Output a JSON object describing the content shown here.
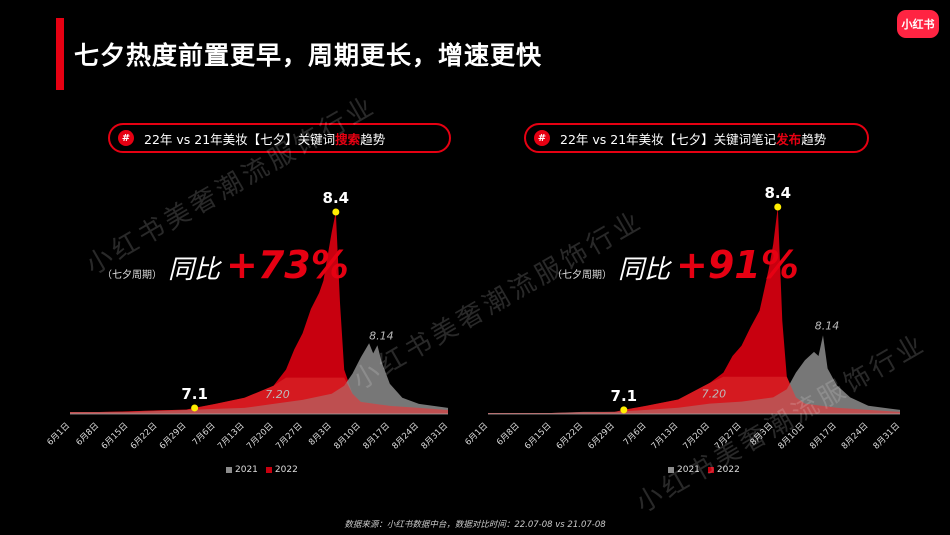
{
  "title": "七夕热度前置更早，周期更长，增速更快",
  "logo_text": "小红书",
  "source": "数据来源：小红书数据中台，数据对比时间：22.07-08 vs 21.07-08",
  "watermark": "小红书美奢潮流服饰行业",
  "colors": {
    "series_2021": "#8c8c8c",
    "series_2022": "#c8000f",
    "accent": "#e60012",
    "highlight_dot": "#ffee00"
  },
  "panels": [
    {
      "pill": {
        "prefix": "22年 vs 21年美妆【七夕】关键词",
        "highlight": "搜索",
        "suffix": "趋势"
      },
      "yoy": {
        "paren": "（七夕周期）",
        "label": "同比",
        "value": "+73%"
      }
    },
    {
      "pill": {
        "prefix": "22年 vs 21年美妆【七夕】关键词笔记",
        "highlight": "发布",
        "suffix": "趋势"
      },
      "yoy": {
        "paren": "（七夕周期）",
        "label": "同比",
        "value": "+91%"
      }
    }
  ],
  "chart_data": [
    {
      "type": "area",
      "title": "22年 vs 21年美妆【七夕】关键词搜索趋势",
      "x_ticks": [
        "6月1日",
        "6月8日",
        "6月15日",
        "6月22日",
        "6月29日",
        "7月6日",
        "7月13日",
        "7月20日",
        "7月27日",
        "8月3日",
        "8月10日",
        "8月17日",
        "8月24日",
        "8月31日"
      ],
      "legend": [
        "2021",
        "2022"
      ],
      "legend_placement": "bottom",
      "grid": false,
      "annotations": [
        {
          "text": "7.1",
          "series": "2022",
          "x": "7月1日",
          "marker": true,
          "bold": true
        },
        {
          "text": "8.4",
          "series": "2022",
          "x": "8月4日",
          "marker": true,
          "bold": true
        },
        {
          "text": "7.20",
          "series": "2021",
          "x": "7月20日",
          "marker": false,
          "bold": false
        },
        {
          "text": "8.14",
          "series": "2021",
          "x": "8月14日",
          "marker": false,
          "bold": false
        }
      ],
      "series": [
        {
          "name": "2021",
          "points": [
            [
              "6月1日",
              1
            ],
            [
              "6月8日",
              1
            ],
            [
              "6月15日",
              1
            ],
            [
              "6月22日",
              1.5
            ],
            [
              "6月29日",
              2
            ],
            [
              "7月6日",
              2.5
            ],
            [
              "7月13日",
              3
            ],
            [
              "7月20日",
              5
            ],
            [
              "7月27日",
              7
            ],
            [
              "8月3日",
              10
            ],
            [
              "8月6日",
              14
            ],
            [
              "8月8日",
              20
            ],
            [
              "8月10日",
              28
            ],
            [
              "8月12日",
              35
            ],
            [
              "8月13日",
              30
            ],
            [
              "8月14日",
              34
            ],
            [
              "8月15日",
              26
            ],
            [
              "8月17日",
              15
            ],
            [
              "8月20日",
              8
            ],
            [
              "8月24日",
              5
            ],
            [
              "8月31日",
              3
            ]
          ]
        },
        {
          "name": "2022",
          "points": [
            [
              "6月1日",
              1
            ],
            [
              "6月8日",
              1
            ],
            [
              "6月15日",
              1.3
            ],
            [
              "6月22日",
              1.8
            ],
            [
              "6月29日",
              2.2
            ],
            [
              "7月1日",
              3
            ],
            [
              "7月6日",
              5
            ],
            [
              "7月13日",
              8
            ],
            [
              "7月20日",
              14
            ],
            [
              "7月23日",
              22
            ],
            [
              "7月25日",
              32
            ],
            [
              "7月27日",
              40
            ],
            [
              "7月29日",
              52
            ],
            [
              "7月31日",
              60
            ],
            [
              "8月1日",
              66
            ],
            [
              "8月2日",
              78
            ],
            [
              "8月3日",
              90
            ],
            [
              "8月4日",
              100
            ],
            [
              "8月5日",
              55
            ],
            [
              "8月6日",
              22
            ],
            [
              "8月8日",
              10
            ],
            [
              "8月10日",
              6
            ],
            [
              "8月17日",
              4
            ],
            [
              "8月24日",
              3
            ],
            [
              "8月31日",
              2
            ]
          ]
        }
      ]
    },
    {
      "type": "area",
      "title": "22年 vs 21年美妆【七夕】关键词笔记发布趋势",
      "x_ticks": [
        "6月1日",
        "6月8日",
        "6月15日",
        "6月22日",
        "6月29日",
        "7月6日",
        "7月13日",
        "7月20日",
        "7月27日",
        "8月3日",
        "8月10日",
        "8月17日",
        "8月24日",
        "8月31日"
      ],
      "legend": [
        "2021",
        "2022"
      ],
      "legend_placement": "bottom",
      "grid": false,
      "annotations": [
        {
          "text": "7.1",
          "series": "2022",
          "x": "7月1日",
          "marker": true,
          "bold": true
        },
        {
          "text": "8.4",
          "series": "2022",
          "x": "8月4日",
          "marker": true,
          "bold": true
        },
        {
          "text": "7.20",
          "series": "2021",
          "x": "7月20日",
          "marker": false,
          "bold": false
        },
        {
          "text": "8.14",
          "series": "2021",
          "x": "8月14日",
          "marker": false,
          "bold": false
        }
      ],
      "series": [
        {
          "name": "2021",
          "points": [
            [
              "6月1日",
              0.5
            ],
            [
              "6月8日",
              0.5
            ],
            [
              "6月15日",
              0.5
            ],
            [
              "6月22日",
              1
            ],
            [
              "6月29日",
              1
            ],
            [
              "7月6日",
              2
            ],
            [
              "7月13日",
              3
            ],
            [
              "7月20日",
              5
            ],
            [
              "7月27日",
              6
            ],
            [
              "8月3日",
              8
            ],
            [
              "8月6日",
              12
            ],
            [
              "8月8日",
              20
            ],
            [
              "8月10日",
              26
            ],
            [
              "8月12日",
              30
            ],
            [
              "8月13日",
              28
            ],
            [
              "8月14日",
              38
            ],
            [
              "8月15日",
              22
            ],
            [
              "8月17日",
              14
            ],
            [
              "8月20日",
              8
            ],
            [
              "8月24日",
              4
            ],
            [
              "8月31日",
              2
            ]
          ]
        },
        {
          "name": "2022",
          "points": [
            [
              "6月1日",
              0.5
            ],
            [
              "6月8日",
              0.5
            ],
            [
              "6月15日",
              0.5
            ],
            [
              "6月22日",
              0.8
            ],
            [
              "6月29日",
              1
            ],
            [
              "7月1日",
              2
            ],
            [
              "7月6日",
              4
            ],
            [
              "7月13日",
              7
            ],
            [
              "7月20日",
              15
            ],
            [
              "7月23日",
              20
            ],
            [
              "7月25日",
              28
            ],
            [
              "7月27日",
              33
            ],
            [
              "7月29日",
              42
            ],
            [
              "7月31日",
              50
            ],
            [
              "8月1日",
              60
            ],
            [
              "8月2日",
              70
            ],
            [
              "8月3日",
              82
            ],
            [
              "8月4日",
              100
            ],
            [
              "8月5日",
              45
            ],
            [
              "8月6日",
              18
            ],
            [
              "8月8日",
              8
            ],
            [
              "8月10日",
              5
            ],
            [
              "8月17日",
              3
            ],
            [
              "8月24日",
              2
            ],
            [
              "8月31日",
              1
            ]
          ]
        }
      ]
    }
  ]
}
